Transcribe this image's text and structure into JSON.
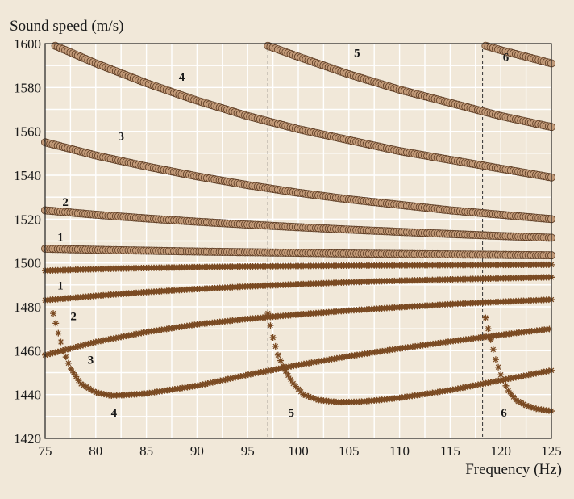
{
  "chart_data": {
    "type": "scatter",
    "title": "",
    "ylabel": "Sound speed (m/s)",
    "xlabel": "Frequency (Hz)",
    "xlim": [
      75,
      125
    ],
    "ylim": [
      1420,
      1600
    ],
    "xticks": [
      75,
      80,
      85,
      90,
      95,
      100,
      105,
      110,
      115,
      120,
      125
    ],
    "yticks": [
      1420,
      1440,
      1460,
      1480,
      1500,
      1520,
      1540,
      1560,
      1580,
      1600
    ],
    "x_grid_step": 2.5,
    "y_grid_step": 10,
    "grid": true,
    "vertical_reference_lines": [
      97,
      118.2
    ],
    "marker_colors": {
      "phase_speed": "#c29a78",
      "group_speed": "#7a4a22"
    },
    "series": [
      {
        "label": "1",
        "marker": "circle",
        "x": [
          75,
          80,
          85,
          90,
          95,
          100,
          105,
          110,
          115,
          120,
          125
        ],
        "y": [
          1506.5,
          1506.0,
          1505.6,
          1505.2,
          1504.9,
          1504.6,
          1504.3,
          1504.1,
          1503.9,
          1503.7,
          1503.5
        ]
      },
      {
        "label": "2",
        "marker": "circle",
        "x": [
          75,
          80,
          85,
          90,
          95,
          100,
          105,
          110,
          115,
          120,
          125
        ],
        "y": [
          1524,
          1522,
          1520.3,
          1518.8,
          1517.5,
          1516.3,
          1515.2,
          1514.2,
          1513.2,
          1512.3,
          1511.5
        ]
      },
      {
        "label": "3",
        "marker": "circle",
        "x": [
          75,
          80,
          85,
          90,
          95,
          100,
          105,
          110,
          115,
          120,
          125
        ],
        "y": [
          1555,
          1549,
          1544,
          1539.5,
          1535.5,
          1532,
          1529,
          1526.5,
          1524,
          1522,
          1520
        ]
      },
      {
        "label": "4",
        "marker": "circle",
        "x": [
          76,
          80,
          85,
          90,
          95,
          100,
          105,
          110,
          115,
          120,
          125
        ],
        "y": [
          1599,
          1591,
          1582,
          1574,
          1567,
          1561,
          1556,
          1551,
          1547,
          1543,
          1539
        ]
      },
      {
        "label": "5",
        "marker": "circle",
        "x": [
          97,
          100,
          105,
          110,
          115,
          120,
          125
        ],
        "y": [
          1599,
          1594,
          1586,
          1579,
          1573,
          1567,
          1562
        ]
      },
      {
        "label": "6",
        "marker": "circle",
        "x": [
          118.5,
          120,
          122.5,
          125
        ],
        "y": [
          1599,
          1597,
          1594,
          1591
        ]
      },
      {
        "label": "1",
        "marker": "star",
        "x": [
          75,
          80,
          85,
          90,
          95,
          100,
          105,
          110,
          115,
          120,
          125
        ],
        "y": [
          1496.5,
          1497.2,
          1497.7,
          1498.1,
          1498.4,
          1498.6,
          1498.8,
          1498.9,
          1499,
          1499.1,
          1499.2
        ]
      },
      {
        "label": "2",
        "marker": "star",
        "x": [
          75,
          80,
          85,
          90,
          95,
          100,
          105,
          110,
          115,
          120,
          125
        ],
        "y": [
          1483,
          1485,
          1486.7,
          1488.1,
          1489.3,
          1490.3,
          1491.2,
          1491.9,
          1492.5,
          1493,
          1493.5
        ]
      },
      {
        "label": "3",
        "marker": "star",
        "x": [
          75,
          80,
          85,
          90,
          95,
          100,
          105,
          110,
          115,
          120,
          125
        ],
        "y": [
          1458,
          1464,
          1468.5,
          1472,
          1474.5,
          1476.5,
          1478.3,
          1479.8,
          1481.2,
          1482.3,
          1483.3
        ]
      },
      {
        "label": "4",
        "marker": "star",
        "x": [
          75.8,
          76.3,
          76.8,
          77.5,
          78.5,
          80,
          81.5,
          83,
          85,
          90,
          95,
          100,
          105,
          110,
          115,
          120,
          125
        ],
        "y": [
          1477,
          1468,
          1460,
          1452,
          1445,
          1441,
          1439.5,
          1439.8,
          1440.5,
          1444,
          1449,
          1453.5,
          1457.5,
          1461,
          1464.2,
          1467.2,
          1470
        ]
      },
      {
        "label": "5",
        "marker": "star",
        "x": [
          97,
          97.5,
          98,
          98.7,
          99.5,
          100.5,
          102,
          104,
          106,
          108,
          110,
          115,
          120,
          125
        ],
        "y": [
          1477,
          1466,
          1458,
          1451,
          1445,
          1440,
          1437.5,
          1436.5,
          1436.7,
          1437.5,
          1438.5,
          1442,
          1446.5,
          1451
        ]
      },
      {
        "label": "6",
        "marker": "star",
        "x": [
          118.5,
          119,
          119.5,
          120,
          120.7,
          121.5,
          122.5,
          123.5,
          124.5,
          125
        ],
        "y": [
          1475,
          1465,
          1456,
          1449,
          1442,
          1437.5,
          1435,
          1433.5,
          1432.8,
          1432.5
        ]
      }
    ],
    "curve_labels": [
      {
        "text": "1",
        "x": 76.5,
        "y": 1510
      },
      {
        "text": "2",
        "x": 77,
        "y": 1526
      },
      {
        "text": "3",
        "x": 82.5,
        "y": 1556
      },
      {
        "text": "4",
        "x": 88.5,
        "y": 1583
      },
      {
        "text": "5",
        "x": 105.8,
        "y": 1594
      },
      {
        "text": "6",
        "x": 120.5,
        "y": 1592
      },
      {
        "text": "1",
        "x": 76.5,
        "y": 1488
      },
      {
        "text": "2",
        "x": 77.8,
        "y": 1474
      },
      {
        "text": "3",
        "x": 79.5,
        "y": 1454
      },
      {
        "text": "4",
        "x": 81.8,
        "y": 1430
      },
      {
        "text": "5",
        "x": 99.3,
        "y": 1430
      },
      {
        "text": "6",
        "x": 120.3,
        "y": 1430
      }
    ]
  }
}
